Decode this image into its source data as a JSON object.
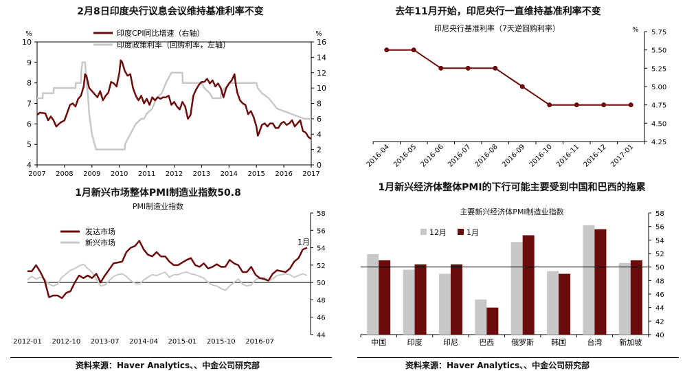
{
  "source_label": "资料来源：Haver Analytics、、中金公司研究部",
  "chart_data": [
    {
      "id": "india",
      "type": "line",
      "title": "2月8日印度央行议息会议维持基准利率不变",
      "left_unit": "%",
      "right_unit": "%",
      "left_ylim": [
        4,
        10
      ],
      "left_ticks": [
        4,
        5,
        6,
        7,
        8,
        9,
        10
      ],
      "right_ylim": [
        0,
        16
      ],
      "right_ticks": [
        0,
        2,
        4,
        6,
        8,
        10,
        12,
        14,
        16
      ],
      "x_range": [
        2007,
        2017
      ],
      "x_ticks": [
        "2007",
        "2008",
        "2009",
        "2010",
        "2011",
        "2012",
        "2013",
        "2014",
        "2015",
        "2016",
        "2017"
      ],
      "legend_position": "top-center",
      "colors": {
        "cpi": "#6b0b0b",
        "policy": "#c8c8c8"
      },
      "series": [
        {
          "name": "印度CPI同比增速（右轴）",
          "axis": "right",
          "points": [
            [
              2007.0,
              6.5
            ],
            [
              2007.1,
              6.8
            ],
            [
              2007.3,
              6.7
            ],
            [
              2007.4,
              5.8
            ],
            [
              2007.5,
              6.3
            ],
            [
              2007.6,
              5.8
            ],
            [
              2007.7,
              5.0
            ],
            [
              2007.85,
              5.5
            ],
            [
              2008.0,
              5.8
            ],
            [
              2008.1,
              6.8
            ],
            [
              2008.2,
              7.8
            ],
            [
              2008.3,
              8.0
            ],
            [
              2008.4,
              7.6
            ],
            [
              2008.5,
              8.6
            ],
            [
              2008.6,
              9.0
            ],
            [
              2008.7,
              10.2
            ],
            [
              2008.75,
              11.8
            ],
            [
              2008.8,
              11.6
            ],
            [
              2008.9,
              10.0
            ],
            [
              2009.0,
              9.6
            ],
            [
              2009.1,
              9.2
            ],
            [
              2009.2,
              8.8
            ],
            [
              2009.3,
              9.6
            ],
            [
              2009.4,
              8.4
            ],
            [
              2009.5,
              9.0
            ],
            [
              2009.6,
              9.4
            ],
            [
              2009.7,
              10.8
            ],
            [
              2009.8,
              10.6
            ],
            [
              2009.9,
              10.2
            ],
            [
              2010.0,
              12.0
            ],
            [
              2010.05,
              13.6
            ],
            [
              2010.1,
              13.4
            ],
            [
              2010.2,
              12.2
            ],
            [
              2010.3,
              11.6
            ],
            [
              2010.4,
              11.8
            ],
            [
              2010.5,
              10.0
            ],
            [
              2010.6,
              9.0
            ],
            [
              2010.7,
              8.4
            ],
            [
              2010.8,
              9.0
            ],
            [
              2010.9,
              8.0
            ],
            [
              2011.0,
              8.6
            ],
            [
              2011.1,
              7.8
            ],
            [
              2011.2,
              8.8
            ],
            [
              2011.3,
              8.4
            ],
            [
              2011.4,
              8.8
            ],
            [
              2011.5,
              8.6
            ],
            [
              2011.6,
              8.8
            ],
            [
              2011.7,
              8.8
            ],
            [
              2011.8,
              9.0
            ],
            [
              2011.9,
              7.8
            ],
            [
              2012.0,
              8.2
            ],
            [
              2012.1,
              7.6
            ],
            [
              2012.2,
              7.2
            ],
            [
              2012.3,
              8.2
            ],
            [
              2012.4,
              7.6
            ],
            [
              2012.5,
              6.0
            ],
            [
              2012.6,
              6.5
            ],
            [
              2012.7,
              9.0
            ],
            [
              2012.8,
              9.8
            ],
            [
              2012.9,
              10.4
            ],
            [
              2013.0,
              10.8
            ],
            [
              2013.1,
              10.8
            ],
            [
              2013.2,
              11.2
            ],
            [
              2013.3,
              10.6
            ],
            [
              2013.4,
              11.0
            ],
            [
              2013.5,
              10.2
            ],
            [
              2013.6,
              10.6
            ],
            [
              2013.7,
              10.0
            ],
            [
              2013.8,
              8.8
            ],
            [
              2013.9,
              10.0
            ],
            [
              2014.0,
              10.6
            ],
            [
              2014.1,
              11.0
            ],
            [
              2014.2,
              11.8
            ],
            [
              2014.25,
              10.4
            ],
            [
              2014.3,
              9.4
            ],
            [
              2014.4,
              8.4
            ],
            [
              2014.5,
              8.0
            ],
            [
              2014.6,
              7.8
            ],
            [
              2014.7,
              6.6
            ],
            [
              2014.8,
              7.0
            ],
            [
              2014.9,
              6.2
            ],
            [
              2015.0,
              5.0
            ],
            [
              2015.05,
              3.8
            ],
            [
              2015.1,
              4.2
            ],
            [
              2015.2,
              5.2
            ],
            [
              2015.3,
              5.4
            ],
            [
              2015.4,
              5.0
            ],
            [
              2015.5,
              5.4
            ],
            [
              2015.6,
              5.4
            ],
            [
              2015.7,
              4.8
            ],
            [
              2015.8,
              4.8
            ],
            [
              2015.9,
              5.4
            ],
            [
              2016.0,
              5.6
            ],
            [
              2016.1,
              5.2
            ],
            [
              2016.2,
              5.4
            ],
            [
              2016.3,
              5.8
            ],
            [
              2016.4,
              5.0
            ],
            [
              2016.5,
              5.4
            ],
            [
              2016.6,
              5.8
            ],
            [
              2016.7,
              4.4
            ],
            [
              2016.8,
              4.2
            ],
            [
              2016.9,
              3.6
            ],
            [
              2017.0,
              3.4
            ]
          ]
        },
        {
          "name": "印度政策利率（回购利率，左轴）",
          "axis": "left",
          "points": [
            [
              2007.0,
              7.25
            ],
            [
              2007.2,
              7.25
            ],
            [
              2007.21,
              7.5
            ],
            [
              2007.6,
              7.5
            ],
            [
              2007.61,
              7.75
            ],
            [
              2008.4,
              7.75
            ],
            [
              2008.41,
              8.0
            ],
            [
              2008.6,
              8.0
            ],
            [
              2008.61,
              8.5
            ],
            [
              2008.65,
              9.0
            ],
            [
              2008.75,
              9.0
            ],
            [
              2008.8,
              8.0
            ],
            [
              2008.85,
              7.5
            ],
            [
              2008.9,
              6.5
            ],
            [
              2009.0,
              5.5
            ],
            [
              2009.1,
              5.0
            ],
            [
              2009.15,
              4.75
            ],
            [
              2009.2,
              4.75
            ],
            [
              2009.3,
              4.75
            ],
            [
              2010.2,
              4.75
            ],
            [
              2010.21,
              5.0
            ],
            [
              2010.3,
              5.25
            ],
            [
              2010.4,
              5.5
            ],
            [
              2010.5,
              5.75
            ],
            [
              2010.6,
              6.0
            ],
            [
              2010.8,
              6.25
            ],
            [
              2010.9,
              6.25
            ],
            [
              2011.0,
              6.5
            ],
            [
              2011.2,
              6.75
            ],
            [
              2011.35,
              7.25
            ],
            [
              2011.55,
              7.5
            ],
            [
              2011.7,
              8.0
            ],
            [
              2011.8,
              8.25
            ],
            [
              2011.9,
              8.5
            ],
            [
              2012.3,
              8.5
            ],
            [
              2012.31,
              8.0
            ],
            [
              2013.0,
              8.0
            ],
            [
              2013.1,
              7.75
            ],
            [
              2013.3,
              7.5
            ],
            [
              2013.4,
              7.25
            ],
            [
              2013.7,
              7.25
            ],
            [
              2013.71,
              7.5
            ],
            [
              2013.85,
              7.75
            ],
            [
              2014.05,
              8.0
            ],
            [
              2015.0,
              8.0
            ],
            [
              2015.05,
              7.75
            ],
            [
              2015.2,
              7.5
            ],
            [
              2015.45,
              7.25
            ],
            [
              2015.75,
              6.75
            ],
            [
              2016.25,
              6.5
            ],
            [
              2016.75,
              6.25
            ],
            [
              2017.0,
              6.25
            ]
          ]
        }
      ]
    },
    {
      "id": "indonesia",
      "type": "line",
      "title": "去年11月开始，印尼央行一直维持基准利率不变",
      "series_label": "印尼央行基准利率（7天逆回购利率）",
      "unit": "%",
      "ylim": [
        4.25,
        5.75
      ],
      "y_ticks": [
        "5.75",
        "5.50",
        "5.25",
        "5.00",
        "4.75",
        "4.50",
        "4.25"
      ],
      "categories": [
        "2016-04",
        "2016-05",
        "2016-06",
        "2016-07",
        "2016-08",
        "2016-09",
        "2016-10",
        "2016-11",
        "2016-12",
        "2017-01"
      ],
      "values": [
        5.5,
        5.5,
        5.25,
        5.25,
        5.25,
        5.0,
        4.75,
        4.75,
        4.75,
        4.75
      ],
      "color": "#6b0b0b"
    },
    {
      "id": "pmi",
      "type": "line",
      "title": "1月新兴市场整体PMI制造业指数50.8",
      "subtitle": "PMI制造业指数",
      "ylim": [
        44,
        58
      ],
      "y_ticks": [
        44,
        46,
        48,
        50,
        52,
        54,
        56,
        58
      ],
      "x_ticks": [
        "2012-01",
        "2012-10",
        "2013-07",
        "2014-04",
        "2015-01",
        "2015-10",
        "2016-07"
      ],
      "annotation": "1月",
      "legend_position": "top-left",
      "colors": {
        "developed": "#6b0b0b",
        "emerging": "#c8c8c8"
      },
      "series": [
        {
          "name": "发达市场",
          "values": [
            51.3,
            51.3,
            52.0,
            51.2,
            50.2,
            48.3,
            48.5,
            48.5,
            48.2,
            48.8,
            49.0,
            50.0,
            50.8,
            50.5,
            50.8,
            50.5,
            51.0,
            50.0,
            50.8,
            51.5,
            52.2,
            52.3,
            52.4,
            53.5,
            54.0,
            54.2,
            54.8,
            53.8,
            53.2,
            53.0,
            53.5,
            53.0,
            53.0,
            52.4,
            52.0,
            52.0,
            52.3,
            52.6,
            52.8,
            52.0,
            51.8,
            52.2,
            51.6,
            51.8,
            52.1,
            51.8,
            51.8,
            52.6,
            52.2,
            52.0,
            51.2,
            51.2,
            51.8,
            50.9,
            50.5,
            50.4,
            50.2,
            51.0,
            51.4,
            51.3,
            51.2,
            51.6,
            52.4,
            52.8,
            53.8,
            54.0
          ]
        },
        {
          "name": "新兴市场",
          "values": [
            50.3,
            50.7,
            50.4,
            50.6,
            50.4,
            49.8,
            49.6,
            49.8,
            50.6,
            51.0,
            51.4,
            51.6,
            51.9,
            52.1,
            51.6,
            51.2,
            50.4,
            49.6,
            49.7,
            50.2,
            50.7,
            50.9,
            51.0,
            50.7,
            50.2,
            49.9,
            49.8,
            50.3,
            50.6,
            50.9,
            50.8,
            51.0,
            51.2,
            50.6,
            50.9,
            50.9,
            51.1,
            51.2,
            51.0,
            50.9,
            50.7,
            50.5,
            50.0,
            49.7,
            49.6,
            49.3,
            49.1,
            49.6,
            50.0,
            50.4,
            49.8,
            49.6,
            49.7,
            50.3,
            50.5,
            50.6,
            50.2,
            50.4,
            50.8,
            50.9,
            51.0,
            50.9,
            50.6,
            50.8,
            51.0,
            50.8
          ]
        }
      ]
    },
    {
      "id": "pmi_countries",
      "type": "bar",
      "title": "1月新兴经济体整体PMI的下行可能主要受到中国和巴西的拖累",
      "subtitle": "主要新兴经济体PMI制造业指数",
      "ylim": [
        40,
        58
      ],
      "y_ticks": [
        40,
        42,
        44,
        46,
        48,
        50,
        52,
        54,
        56,
        58
      ],
      "reference_line": 50,
      "categories": [
        "中国",
        "印度",
        "印尼",
        "巴西",
        "俄罗斯",
        "韩国",
        "台湾",
        "新加坡"
      ],
      "legend_position": "top-left",
      "colors": {
        "dec": "#c8c8c8",
        "jan": "#6b0b0b"
      },
      "series": [
        {
          "name": "12月",
          "values": [
            51.9,
            49.6,
            49.0,
            45.2,
            53.7,
            49.4,
            56.2,
            50.6
          ]
        },
        {
          "name": "1月",
          "values": [
            51.0,
            50.4,
            50.4,
            44.0,
            54.7,
            49.0,
            55.6,
            51.0
          ]
        }
      ]
    }
  ]
}
